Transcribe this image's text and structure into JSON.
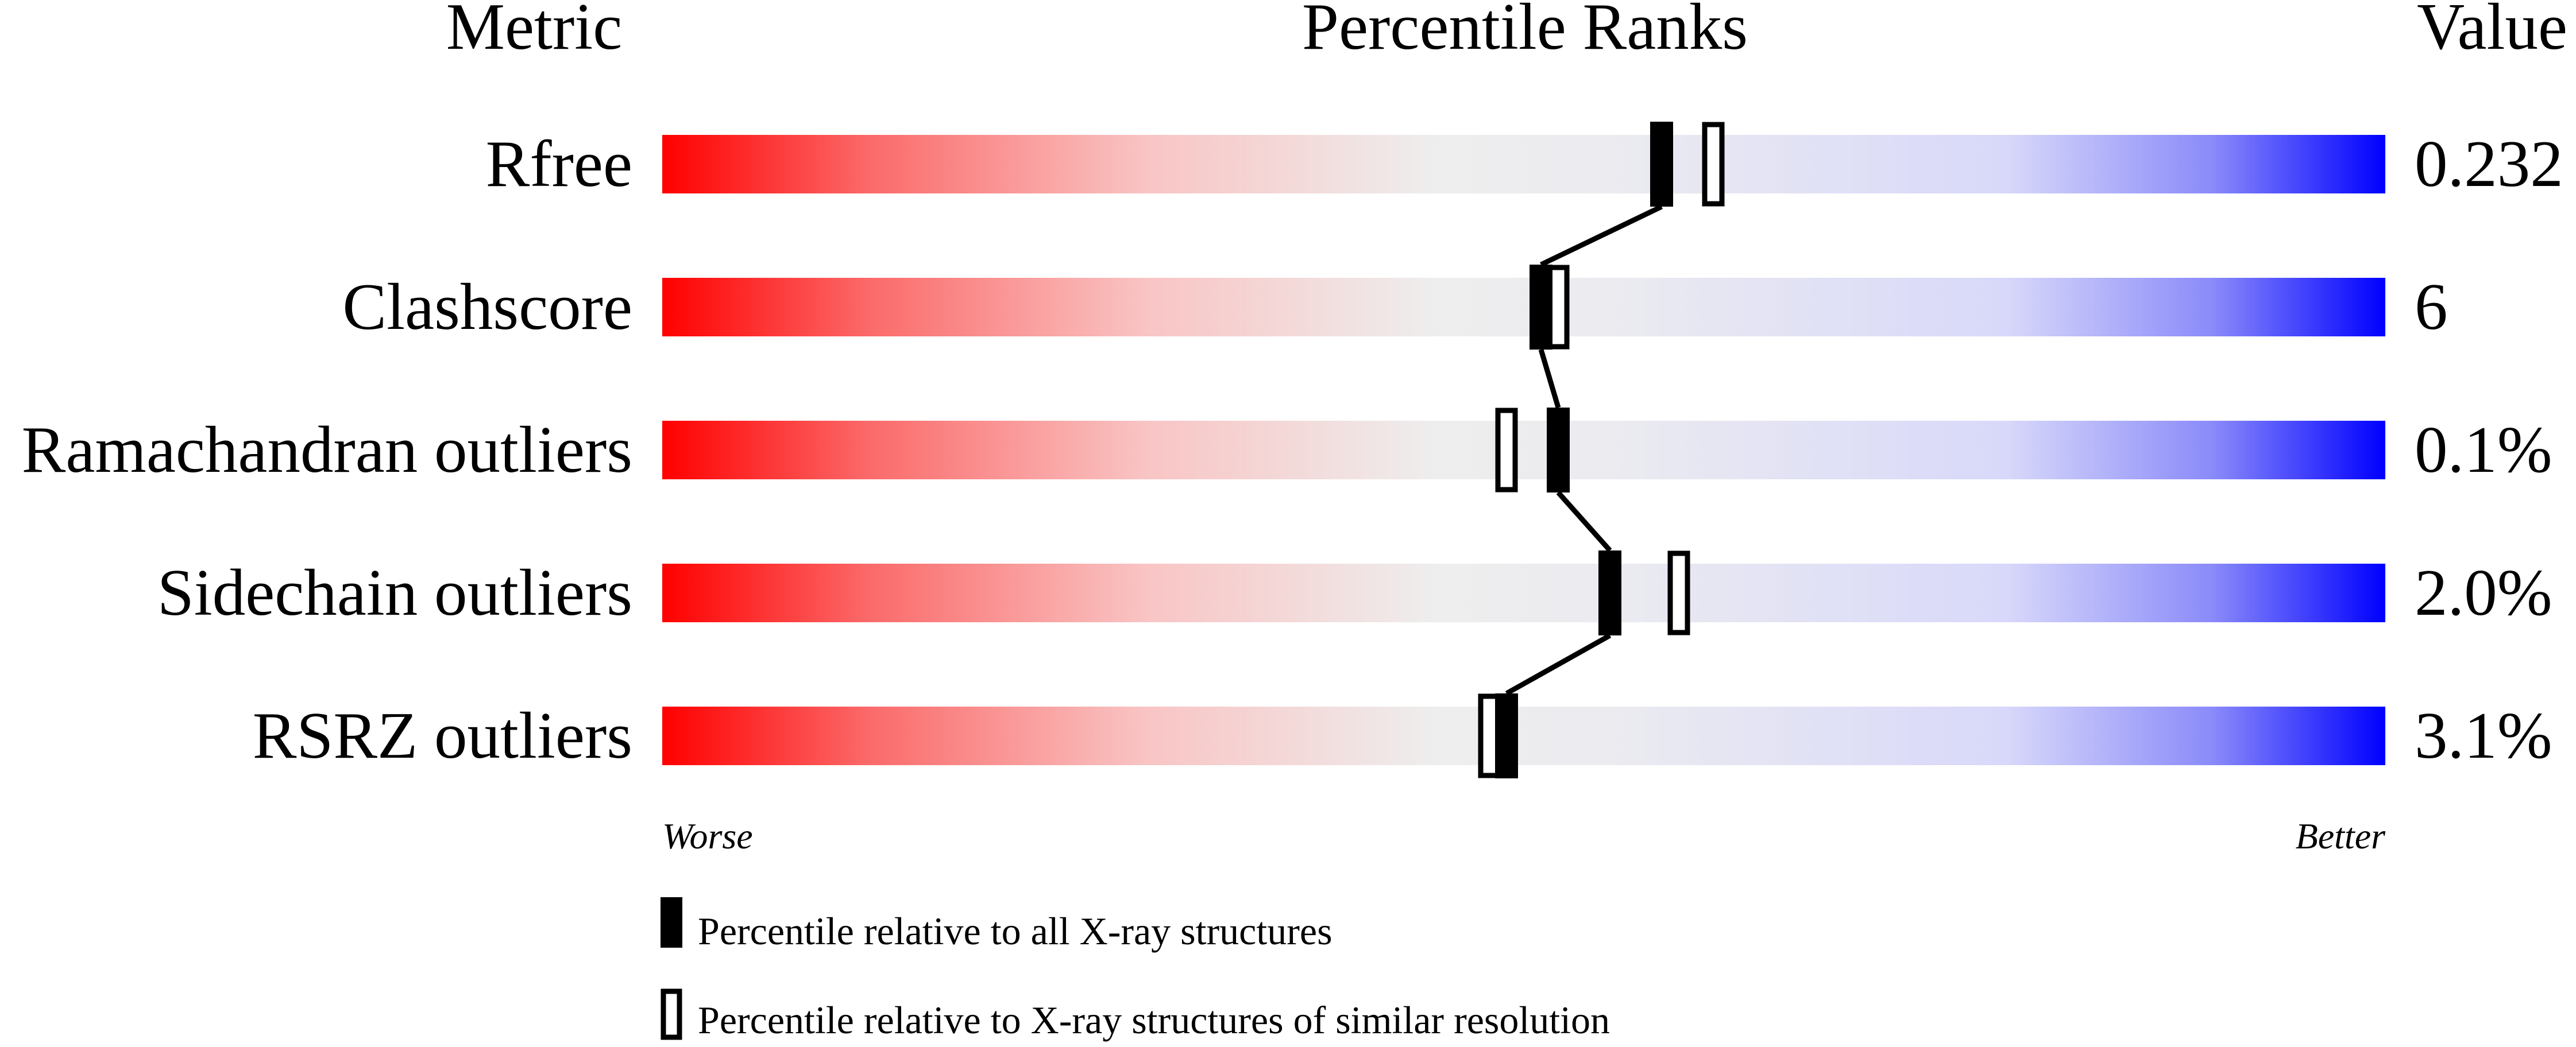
{
  "chart_data": {
    "type": "percentile-slider",
    "headers": {
      "metric": "Metric",
      "ranks": "Percentile Ranks",
      "value": "Value"
    },
    "xlim": [
      0,
      100
    ],
    "axis_labels": {
      "left": "Worse",
      "right": "Better"
    },
    "gradient_colors": {
      "worse": "#ff0000",
      "middle": "#eeeeee",
      "better": "#0000ff"
    },
    "rows": [
      {
        "metric": "Rfree",
        "value": "0.232",
        "percentile_all": 58,
        "percentile_similar": 61
      },
      {
        "metric": "Clashscore",
        "value": "6",
        "percentile_all": 51,
        "percentile_similar": 52
      },
      {
        "metric": "Ramachandran outliers",
        "value": "0.1%",
        "percentile_all": 52,
        "percentile_similar": 49
      },
      {
        "metric": "Sidechain outliers",
        "value": "2.0%",
        "percentile_all": 55,
        "percentile_similar": 59
      },
      {
        "metric": "RSRZ outliers",
        "value": "3.1%",
        "percentile_all": 49,
        "percentile_similar": 48
      }
    ],
    "legend": [
      {
        "marker": "filled",
        "label": "Percentile relative to all X-ray structures"
      },
      {
        "marker": "open",
        "label": "Percentile relative to X-ray structures of similar resolution"
      }
    ]
  }
}
